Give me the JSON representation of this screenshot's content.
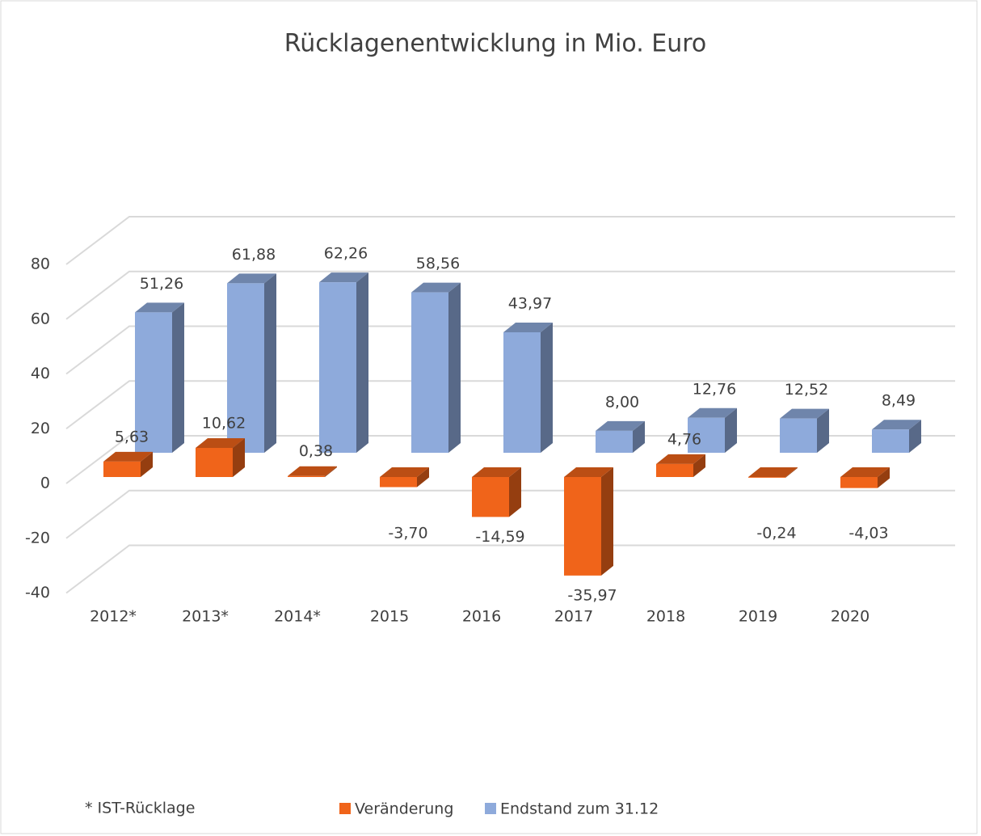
{
  "chart_data": {
    "type": "bar3d",
    "title": "Rücklagenentwicklung in Mio. Euro",
    "categories": [
      "2012*",
      "2013*",
      "2014*",
      "2015",
      "2016",
      "2017",
      "2018",
      "2019",
      "2020"
    ],
    "series": [
      {
        "name": "Veränderung",
        "color": "#f0641a",
        "values": [
          5.63,
          10.62,
          0.38,
          -3.7,
          -14.59,
          -35.97,
          4.76,
          -0.24,
          -4.03
        ],
        "value_labels": [
          "5,63",
          "10,62",
          "0,38",
          "-3,70",
          "-14,59",
          "-35,97",
          "4,76",
          "-0,24",
          "-4,03"
        ]
      },
      {
        "name": "Endstand zum 31.12",
        "color": "#8eaadb",
        "values": [
          51.26,
          61.88,
          62.26,
          58.56,
          43.97,
          8.0,
          12.76,
          12.52,
          8.49
        ],
        "value_labels": [
          "51,26",
          "61,88",
          "62,26",
          "58,56",
          "43,97",
          "8,00",
          "12,76",
          "12,52",
          "8,49"
        ]
      }
    ],
    "ylim": [
      -40,
      80
    ],
    "yticks": [
      -40,
      -20,
      0,
      20,
      40,
      60,
      80
    ],
    "grid": true,
    "annotation": "* IST-Rücklage",
    "legend": "bottom"
  }
}
